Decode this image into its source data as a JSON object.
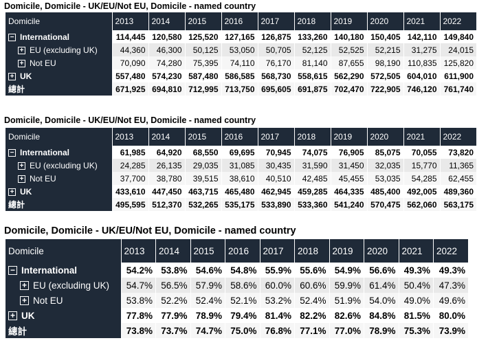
{
  "years": [
    "2013",
    "2014",
    "2015",
    "2016",
    "2017",
    "2018",
    "2019",
    "2020",
    "2021",
    "2022"
  ],
  "tables": [
    {
      "caption": "Domicile, Domicile - UK/EU/Not EU, Domicile - named country",
      "header": "Domicile",
      "rows": [
        {
          "label": "International",
          "toggle": "−",
          "kind": "grp",
          "values": [
            "114,445",
            "120,580",
            "125,520",
            "127,165",
            "126,875",
            "133,260",
            "140,180",
            "150,405",
            "142,110",
            "149,840"
          ]
        },
        {
          "label": "EU (excluding UK)",
          "toggle": "+",
          "kind": "sub",
          "values": [
            "44,360",
            "46,300",
            "50,125",
            "53,050",
            "50,705",
            "52,125",
            "52,525",
            "52,215",
            "31,275",
            "24,015"
          ]
        },
        {
          "label": "Not EU",
          "toggle": "+",
          "kind": "sub2",
          "values": [
            "70,090",
            "74,280",
            "75,395",
            "74,110",
            "76,170",
            "81,140",
            "87,655",
            "98,190",
            "110,835",
            "125,820"
          ]
        },
        {
          "label": "UK",
          "toggle": "+",
          "kind": "grp",
          "values": [
            "557,480",
            "574,230",
            "587,480",
            "586,585",
            "568,730",
            "558,615",
            "562,290",
            "572,505",
            "604,010",
            "611,900"
          ]
        },
        {
          "label": "總計",
          "toggle": "",
          "kind": "tot",
          "values": [
            "671,925",
            "694,810",
            "712,995",
            "713,750",
            "695,605",
            "691,875",
            "702,470",
            "722,905",
            "746,120",
            "761,740"
          ]
        }
      ]
    },
    {
      "caption": "Domicile, Domicile - UK/EU/Not EU, Domicile - named country",
      "header": "Domicile",
      "rows": [
        {
          "label": "International",
          "toggle": "−",
          "kind": "grp",
          "values": [
            "61,985",
            "64,920",
            "68,550",
            "69,695",
            "70,945",
            "74,075",
            "76,905",
            "85,075",
            "70,055",
            "73,820"
          ]
        },
        {
          "label": "EU (excluding UK)",
          "toggle": "+",
          "kind": "sub",
          "values": [
            "24,285",
            "26,135",
            "29,035",
            "31,085",
            "30,435",
            "31,590",
            "31,450",
            "32,035",
            "15,770",
            "11,365"
          ]
        },
        {
          "label": "Not EU",
          "toggle": "+",
          "kind": "sub2",
          "values": [
            "37,700",
            "38,780",
            "39,515",
            "38,610",
            "40,510",
            "42,485",
            "45,455",
            "53,035",
            "54,285",
            "62,455"
          ]
        },
        {
          "label": "UK",
          "toggle": "+",
          "kind": "grp",
          "values": [
            "433,610",
            "447,450",
            "463,715",
            "465,480",
            "462,945",
            "459,285",
            "464,335",
            "485,400",
            "492,005",
            "489,360"
          ]
        },
        {
          "label": "總計",
          "toggle": "",
          "kind": "tot",
          "values": [
            "495,595",
            "512,370",
            "532,265",
            "535,175",
            "533,890",
            "533,360",
            "541,240",
            "570,475",
            "562,060",
            "563,175"
          ]
        }
      ]
    },
    {
      "caption": "Domicile, Domicile - UK/EU/Not EU, Domicile - named country",
      "header": "Domicile",
      "rows": [
        {
          "label": "International",
          "toggle": "−",
          "kind": "grp",
          "values": [
            "54.2%",
            "53.8%",
            "54.6%",
            "54.8%",
            "55.9%",
            "55.6%",
            "54.9%",
            "56.6%",
            "49.3%",
            "49.3%"
          ]
        },
        {
          "label": "EU (excluding UK)",
          "toggle": "+",
          "kind": "sub",
          "values": [
            "54.7%",
            "56.5%",
            "57.9%",
            "58.6%",
            "60.0%",
            "60.6%",
            "59.9%",
            "61.4%",
            "50.4%",
            "47.3%"
          ]
        },
        {
          "label": "Not EU",
          "toggle": "+",
          "kind": "sub2",
          "values": [
            "53.8%",
            "52.2%",
            "52.4%",
            "52.1%",
            "53.2%",
            "52.4%",
            "51.9%",
            "54.0%",
            "49.0%",
            "49.6%"
          ]
        },
        {
          "label": "UK",
          "toggle": "+",
          "kind": "grp",
          "values": [
            "77.8%",
            "77.9%",
            "78.9%",
            "79.4%",
            "81.4%",
            "82.2%",
            "82.6%",
            "84.8%",
            "81.5%",
            "80.0%"
          ]
        },
        {
          "label": "總計",
          "toggle": "",
          "kind": "tot",
          "values": [
            "73.8%",
            "73.7%",
            "74.7%",
            "75.0%",
            "76.8%",
            "77.1%",
            "77.0%",
            "78.9%",
            "75.3%",
            "73.9%"
          ]
        }
      ]
    }
  ]
}
